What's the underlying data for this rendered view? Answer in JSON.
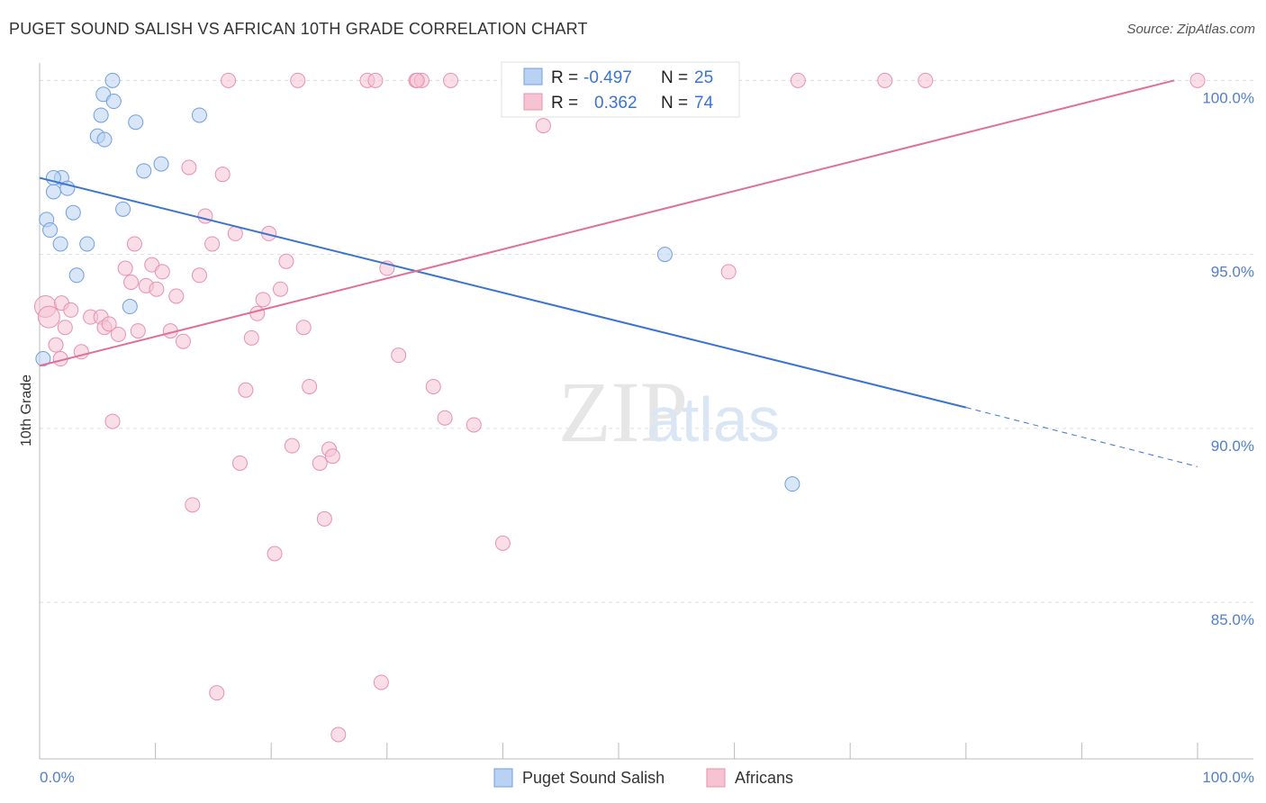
{
  "title": "PUGET SOUND SALISH VS AFRICAN 10TH GRADE CORRELATION CHART",
  "source": "Source: ZipAtlas.com",
  "watermark": {
    "zip": "ZIP",
    "atlas": "atlas"
  },
  "colors": {
    "blue": "#6f9fe0",
    "blue_fill": "#b9d1f3",
    "blue_line": "#3a74d0",
    "pink": "#e890ad",
    "pink_fill": "#f6c3d3",
    "pink_line": "#e07097",
    "axis_text": "#4f7fce",
    "grid": "#dddddd"
  },
  "legend": {
    "blue": {
      "r_label": "R =",
      "r_value": "-0.497",
      "n_label": "N =",
      "n_value": "25"
    },
    "pink": {
      "r_label": "R =",
      "r_value": "0.362",
      "n_label": "N =",
      "n_value": "74"
    }
  },
  "bottom_legend": {
    "blue": "Puget Sound Salish",
    "pink": "Africans"
  },
  "chart_data": {
    "type": "scatter",
    "title": "PUGET SOUND SALISH VS AFRICAN 10TH GRADE CORRELATION CHART",
    "xlabel": "",
    "ylabel": "10th Grade",
    "xlim": [
      0,
      100
    ],
    "ylim": [
      80.5,
      100.5
    ],
    "x_tick_labels": [
      "0.0%",
      "100.0%"
    ],
    "y_ticks": [
      85,
      90,
      95,
      100
    ],
    "y_tick_labels": [
      "85.0%",
      "90.0%",
      "95.0%",
      "100.0%"
    ],
    "grid": true,
    "legend_position": "top-center",
    "series": [
      {
        "name": "Puget Sound Salish",
        "color": "#6f9fe0",
        "r": -0.497,
        "n": 25,
        "trend": {
          "x0": 0,
          "y0": 97.2,
          "x1": 80,
          "y1": 90.6,
          "dash_to_x": 100,
          "dash_to_y": 88.9
        },
        "points": [
          [
            0.3,
            92.0
          ],
          [
            0.6,
            96.0
          ],
          [
            0.9,
            95.7
          ],
          [
            1.2,
            96.8
          ],
          [
            1.9,
            97.2
          ],
          [
            2.4,
            96.9
          ],
          [
            1.8,
            95.3
          ],
          [
            2.9,
            96.2
          ],
          [
            3.2,
            94.4
          ],
          [
            4.1,
            95.3
          ],
          [
            5.0,
            98.4
          ],
          [
            5.6,
            98.3
          ],
          [
            5.3,
            99.0
          ],
          [
            5.5,
            99.6
          ],
          [
            6.3,
            100.0
          ],
          [
            6.4,
            99.4
          ],
          [
            7.2,
            96.3
          ],
          [
            8.3,
            98.8
          ],
          [
            7.8,
            93.5
          ],
          [
            9.0,
            97.4
          ],
          [
            10.5,
            97.6
          ],
          [
            13.8,
            99.0
          ],
          [
            54.0,
            95.0
          ],
          [
            65.0,
            88.4
          ],
          [
            1.2,
            97.2
          ]
        ]
      },
      {
        "name": "Africans",
        "color": "#e890ad",
        "r": 0.362,
        "n": 74,
        "trend": {
          "x0": 0,
          "y0": 91.8,
          "x1": 98,
          "y1": 100.0
        },
        "points": [
          [
            0.5,
            93.5
          ],
          [
            0.8,
            93.2
          ],
          [
            1.4,
            92.4
          ],
          [
            1.8,
            92.0
          ],
          [
            1.9,
            93.6
          ],
          [
            2.2,
            92.9
          ],
          [
            2.7,
            93.4
          ],
          [
            3.6,
            92.2
          ],
          [
            4.4,
            93.2
          ],
          [
            5.3,
            93.2
          ],
          [
            5.6,
            92.9
          ],
          [
            6.0,
            93.0
          ],
          [
            6.3,
            90.2
          ],
          [
            6.8,
            92.7
          ],
          [
            7.4,
            94.6
          ],
          [
            7.9,
            94.2
          ],
          [
            8.2,
            95.3
          ],
          [
            8.5,
            92.8
          ],
          [
            9.2,
            94.1
          ],
          [
            9.7,
            94.7
          ],
          [
            10.1,
            94.0
          ],
          [
            10.6,
            94.5
          ],
          [
            11.3,
            92.8
          ],
          [
            11.8,
            93.8
          ],
          [
            12.4,
            92.5
          ],
          [
            12.9,
            97.5
          ],
          [
            13.2,
            87.8
          ],
          [
            13.8,
            94.4
          ],
          [
            14.3,
            96.1
          ],
          [
            14.9,
            95.3
          ],
          [
            15.3,
            82.4
          ],
          [
            15.8,
            97.3
          ],
          [
            16.3,
            100.0
          ],
          [
            16.9,
            95.6
          ],
          [
            17.3,
            89.0
          ],
          [
            17.8,
            91.1
          ],
          [
            18.3,
            92.6
          ],
          [
            18.8,
            93.3
          ],
          [
            19.3,
            93.7
          ],
          [
            19.8,
            95.6
          ],
          [
            20.3,
            86.4
          ],
          [
            20.8,
            94.0
          ],
          [
            21.3,
            94.8
          ],
          [
            21.8,
            89.5
          ],
          [
            22.3,
            100.0
          ],
          [
            22.8,
            92.9
          ],
          [
            23.3,
            91.2
          ],
          [
            24.2,
            89.0
          ],
          [
            24.6,
            87.4
          ],
          [
            25.0,
            89.4
          ],
          [
            25.3,
            89.2
          ],
          [
            25.8,
            81.2
          ],
          [
            28.3,
            100.0
          ],
          [
            29.0,
            100.0
          ],
          [
            29.5,
            82.7
          ],
          [
            30.0,
            94.6
          ],
          [
            31.0,
            92.1
          ],
          [
            32.5,
            100.0
          ],
          [
            33.0,
            100.0
          ],
          [
            34.0,
            91.2
          ],
          [
            35.0,
            90.3
          ],
          [
            35.5,
            100.0
          ],
          [
            37.5,
            90.1
          ],
          [
            40.0,
            86.7
          ],
          [
            42.5,
            99.3
          ],
          [
            43.5,
            98.7
          ],
          [
            54.0,
            100.0
          ],
          [
            59.5,
            94.5
          ],
          [
            65.5,
            100.0
          ],
          [
            73.0,
            100.0
          ],
          [
            76.5,
            100.0
          ],
          [
            100.0,
            100.0
          ],
          [
            32.6,
            100.0
          ],
          [
            45.0,
            100.0
          ]
        ]
      }
    ]
  }
}
